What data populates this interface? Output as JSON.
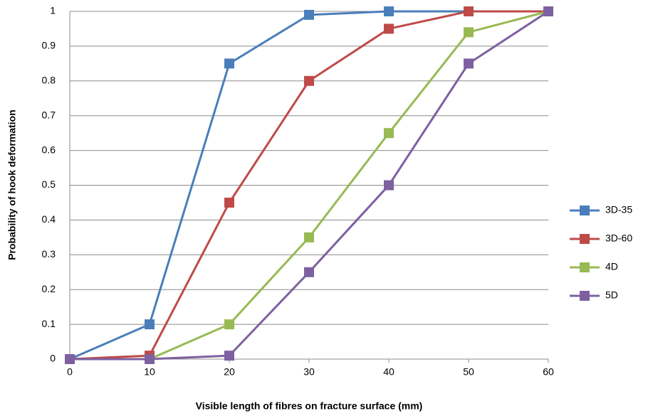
{
  "chart_data": {
    "type": "line",
    "x_label": "Visible length of fibres on fracture surface (mm)",
    "y_label": "Probability of hook deformation",
    "x": [
      0,
      10,
      20,
      30,
      40,
      50,
      60
    ],
    "series": [
      {
        "name": "3D-35",
        "color": "#4a7ebb",
        "values": [
          0,
          0.1,
          0.85,
          0.99,
          1,
          1,
          1
        ]
      },
      {
        "name": "3D-60",
        "color": "#be4b48",
        "values": [
          0,
          0.01,
          0.45,
          0.8,
          0.95,
          1,
          1
        ]
      },
      {
        "name": "4D",
        "color": "#98b954",
        "values": [
          0,
          0,
          0.1,
          0.35,
          0.65,
          0.94,
          1
        ]
      },
      {
        "name": "5D",
        "color": "#7d60a0",
        "values": [
          0,
          0,
          0.01,
          0.25,
          0.5,
          0.85,
          1
        ]
      }
    ],
    "xlim": [
      0,
      60
    ],
    "xticks": [
      0,
      10,
      20,
      30,
      40,
      50,
      60
    ],
    "ylim": [
      0,
      1
    ],
    "yticks": [
      0,
      0.1,
      0.2,
      0.3,
      0.4,
      0.5,
      0.6,
      0.7,
      0.8,
      0.9,
      1
    ],
    "grid": true,
    "legend": "right"
  }
}
